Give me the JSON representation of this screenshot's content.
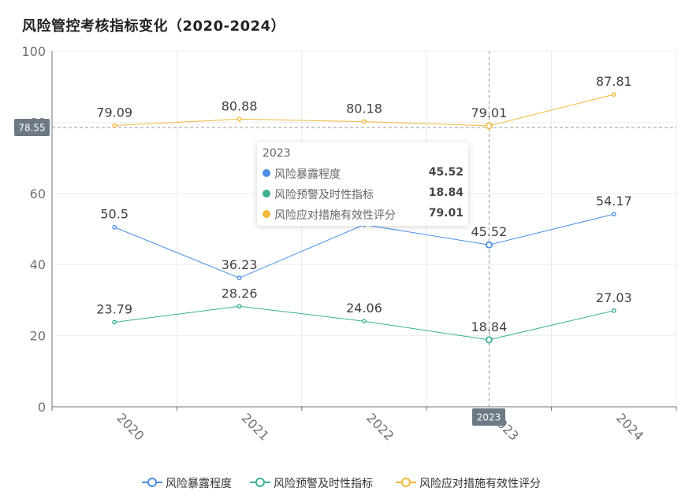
{
  "chart_data": {
    "type": "line",
    "title": "风险管控考核指标变化（2020-2024）",
    "categories": [
      "2020",
      "2021",
      "2022",
      "2023",
      "2024"
    ],
    "ylim": [
      0,
      100
    ],
    "yticks": [
      0,
      20,
      40,
      60,
      80,
      100
    ],
    "grid": true,
    "legend_position": "bottom",
    "series": [
      {
        "name": "风险暴露程度",
        "color": "#5470c6",
        "line_color": "#4a8fe6",
        "values": [
          50.5,
          36.23,
          51.2,
          45.52,
          54.17
        ],
        "labels": [
          "50.5",
          "36.23",
          "",
          "45.52",
          "54.17"
        ]
      },
      {
        "name": "风险预警及时性指标",
        "color": "#3bb08f",
        "line_color": "#3bb08f",
        "values": [
          23.79,
          28.26,
          24.06,
          18.84,
          27.03
        ],
        "labels": [
          "23.79",
          "28.26",
          "24.06",
          "18.84",
          "27.03"
        ]
      },
      {
        "name": "风险应对措施有效性评分",
        "color": "#f3b839",
        "line_color": "#f3b839",
        "values": [
          79.09,
          80.88,
          80.18,
          79.01,
          87.81
        ],
        "labels": [
          "79.09",
          "80.88",
          "80.18",
          "79.01",
          "87.81"
        ]
      }
    ],
    "crosshair": {
      "x_label": "2023",
      "y_label": "78.55",
      "y_value": 78.55
    },
    "tooltip": {
      "title": "2023",
      "rows": [
        {
          "name": "风险暴露程度",
          "value": "45.52",
          "color": "#4a8fe6"
        },
        {
          "name": "风险预警及时性指标",
          "value": "18.84",
          "color": "#3bb08f"
        },
        {
          "name": "风险应对措施有效性评分",
          "value": "79.01",
          "color": "#f3b839"
        }
      ]
    }
  }
}
